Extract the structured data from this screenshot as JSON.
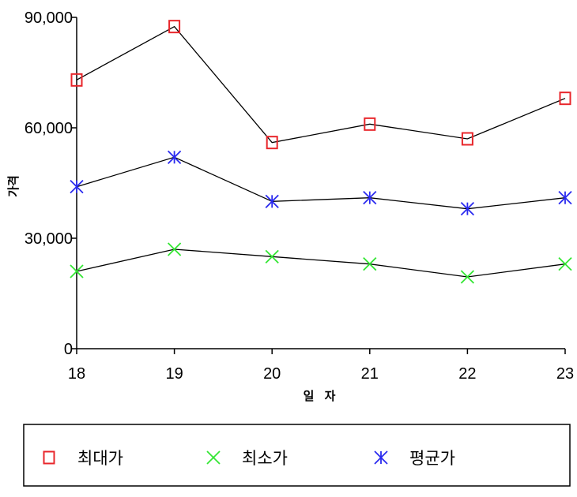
{
  "chart_data": {
    "type": "line",
    "x": [
      18,
      19,
      20,
      21,
      22,
      23
    ],
    "x_tick_labels": [
      "18",
      "19",
      "20",
      "21",
      "22",
      "23"
    ],
    "xlabel": "일 자",
    "ylabel": "가격",
    "ylim": [
      0,
      90000
    ],
    "y_ticks": [
      0,
      30000,
      60000,
      90000
    ],
    "y_tick_labels": [
      "0",
      "30,000",
      "60,000",
      "90,000"
    ],
    "grid": false,
    "legend_position": "bottom",
    "series": [
      {
        "name": "최대가",
        "marker": "square",
        "marker_color": "#e8262b",
        "values": [
          73000,
          87500,
          56000,
          61000,
          57000,
          68000
        ]
      },
      {
        "name": "최소가",
        "marker": "x",
        "marker_color": "#33e633",
        "values": [
          21000,
          27000,
          25000,
          23000,
          19500,
          23000
        ]
      },
      {
        "name": "평균가",
        "marker": "asterisk",
        "marker_color": "#2a2aef",
        "values": [
          44000,
          52000,
          40000,
          41000,
          38000,
          41000
        ]
      }
    ],
    "line_color": "#000000"
  }
}
